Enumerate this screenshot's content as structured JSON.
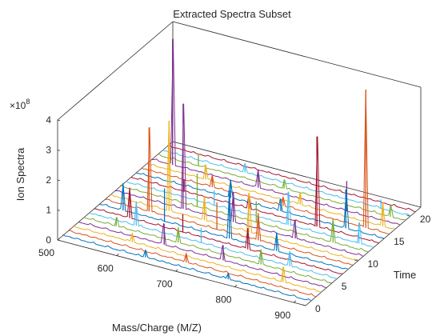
{
  "chart_data": {
    "type": "line",
    "title": "Extracted Spectra Subset",
    "xlabel": "Mass/Charge (M/Z)",
    "ylabel": "Time",
    "zlabel": "Ion Spectra",
    "z_exponent_label": "×10",
    "z_exponent_power": "8",
    "xlim": [
      500,
      920
    ],
    "ylim": [
      0,
      22
    ],
    "zlim": [
      0,
      4
    ],
    "xticks": [
      "500",
      "600",
      "700",
      "800",
      "900"
    ],
    "yticks": [
      "0",
      "5",
      "10",
      "15",
      "20"
    ],
    "zticks": [
      "0",
      "1",
      "2",
      "3",
      "4"
    ],
    "line_colors": [
      "#0072BD",
      "#D95319",
      "#EDB120",
      "#7E2F8E",
      "#77AC30",
      "#4DBEEE",
      "#A2142F"
    ],
    "spectra_times": [
      1,
      2,
      3,
      4,
      5,
      6,
      7,
      8,
      9,
      10,
      11,
      12,
      13,
      14,
      15,
      16,
      17,
      18,
      19,
      20,
      21
    ],
    "peaks": [
      {
        "t": 1,
        "mz": 640,
        "z": 0.25
      },
      {
        "t": 1,
        "mz": 780,
        "z": 0.2
      },
      {
        "t": 2,
        "mz": 700,
        "z": 0.3
      },
      {
        "t": 3,
        "mz": 600,
        "z": 0.3
      },
      {
        "t": 3,
        "mz": 855,
        "z": 0.5
      },
      {
        "t": 4,
        "mz": 645,
        "z": 0.7
      },
      {
        "t": 4,
        "mz": 745,
        "z": 0.5
      },
      {
        "t": 5,
        "mz": 555,
        "z": 0.3
      },
      {
        "t": 5,
        "mz": 660,
        "z": 0.5
      },
      {
        "t": 5,
        "mz": 800,
        "z": 0.5
      },
      {
        "t": 6,
        "mz": 580,
        "z": 0.8
      },
      {
        "t": 6,
        "mz": 690,
        "z": 0.5
      },
      {
        "t": 6,
        "mz": 840,
        "z": 0.5
      },
      {
        "t": 7,
        "mz": 560,
        "z": 1.0
      },
      {
        "t": 7,
        "mz": 650,
        "z": 0.6
      },
      {
        "t": 7,
        "mz": 760,
        "z": 0.7
      },
      {
        "t": 8,
        "mz": 540,
        "z": 0.9
      },
      {
        "t": 8,
        "mz": 610,
        "z": 1.1
      },
      {
        "t": 8,
        "mz": 720,
        "z": 1.6
      },
      {
        "t": 8,
        "mz": 800,
        "z": 0.6
      },
      {
        "t": 9,
        "mz": 575,
        "z": 2.8
      },
      {
        "t": 9,
        "mz": 690,
        "z": 0.9
      },
      {
        "t": 9,
        "mz": 760,
        "z": 0.9
      },
      {
        "t": 10,
        "mz": 600,
        "z": 3.0
      },
      {
        "t": 10,
        "mz": 660,
        "z": 0.8
      },
      {
        "t": 10,
        "mz": 735,
        "z": 1.3
      },
      {
        "t": 11,
        "mz": 615,
        "z": 3.5
      },
      {
        "t": 11,
        "mz": 700,
        "z": 1.0
      },
      {
        "t": 11,
        "mz": 805,
        "z": 0.6
      },
      {
        "t": 12,
        "mz": 630,
        "z": 1.1
      },
      {
        "t": 12,
        "mz": 730,
        "z": 0.7
      },
      {
        "t": 12,
        "mz": 860,
        "z": 0.8
      },
      {
        "t": 13,
        "mz": 650,
        "z": 0.5
      },
      {
        "t": 13,
        "mz": 775,
        "z": 1.1
      },
      {
        "t": 13,
        "mz": 895,
        "z": 0.7
      },
      {
        "t": 14,
        "mz": 590,
        "z": 0.4
      },
      {
        "t": 14,
        "mz": 700,
        "z": 0.5
      },
      {
        "t": 14,
        "mz": 815,
        "z": 3.0
      },
      {
        "t": 15,
        "mz": 660,
        "z": 0.6
      },
      {
        "t": 15,
        "mz": 745,
        "z": 0.4
      },
      {
        "t": 15,
        "mz": 855,
        "z": 1.3
      },
      {
        "t": 16,
        "mz": 620,
        "z": 0.4
      },
      {
        "t": 16,
        "mz": 740,
        "z": 0.3
      },
      {
        "t": 16,
        "mz": 880,
        "z": 4.6
      },
      {
        "t": 17,
        "mz": 600,
        "z": 0.5
      },
      {
        "t": 17,
        "mz": 760,
        "z": 0.4
      },
      {
        "t": 17,
        "mz": 900,
        "z": 0.8
      },
      {
        "t": 18,
        "mz": 535,
        "z": 4.2
      },
      {
        "t": 18,
        "mz": 680,
        "z": 0.6
      },
      {
        "t": 18,
        "mz": 830,
        "z": 1.0
      },
      {
        "t": 19,
        "mz": 570,
        "z": 0.4
      },
      {
        "t": 19,
        "mz": 715,
        "z": 0.3
      },
      {
        "t": 19,
        "mz": 895,
        "z": 0.4
      },
      {
        "t": 20,
        "mz": 640,
        "z": 0.3
      },
      {
        "t": 20,
        "mz": 870,
        "z": 0.3
      }
    ]
  }
}
